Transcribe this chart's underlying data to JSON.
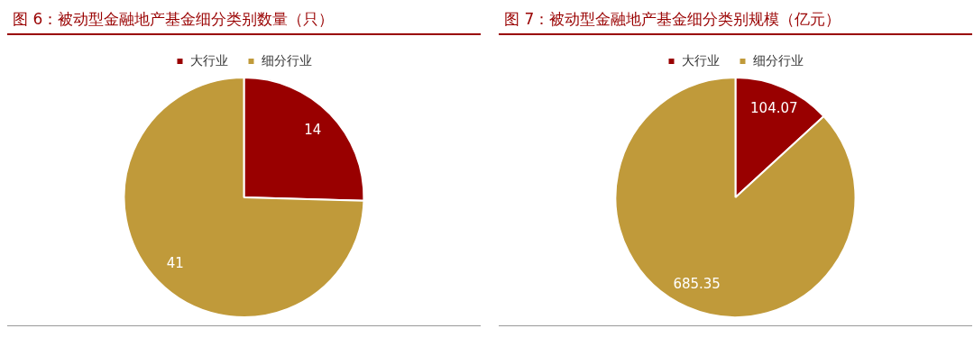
{
  "chart_data": [
    {
      "type": "pie",
      "title": "图 6：被动型金融地产基金细分类别数量（只）",
      "categories": [
        "大行业",
        "细分行业"
      ],
      "values": [
        14,
        41
      ],
      "colors": [
        "#990000",
        "#c09a3a"
      ],
      "legend": "top",
      "data_labels": true
    },
    {
      "type": "pie",
      "title": "图 7：被动型金融地产基金细分类别规模（亿元）",
      "categories": [
        "大行业",
        "细分行业"
      ],
      "values": [
        104.07,
        685.35
      ],
      "colors": [
        "#990000",
        "#c09a3a"
      ],
      "legend": "top",
      "data_labels": true
    }
  ]
}
